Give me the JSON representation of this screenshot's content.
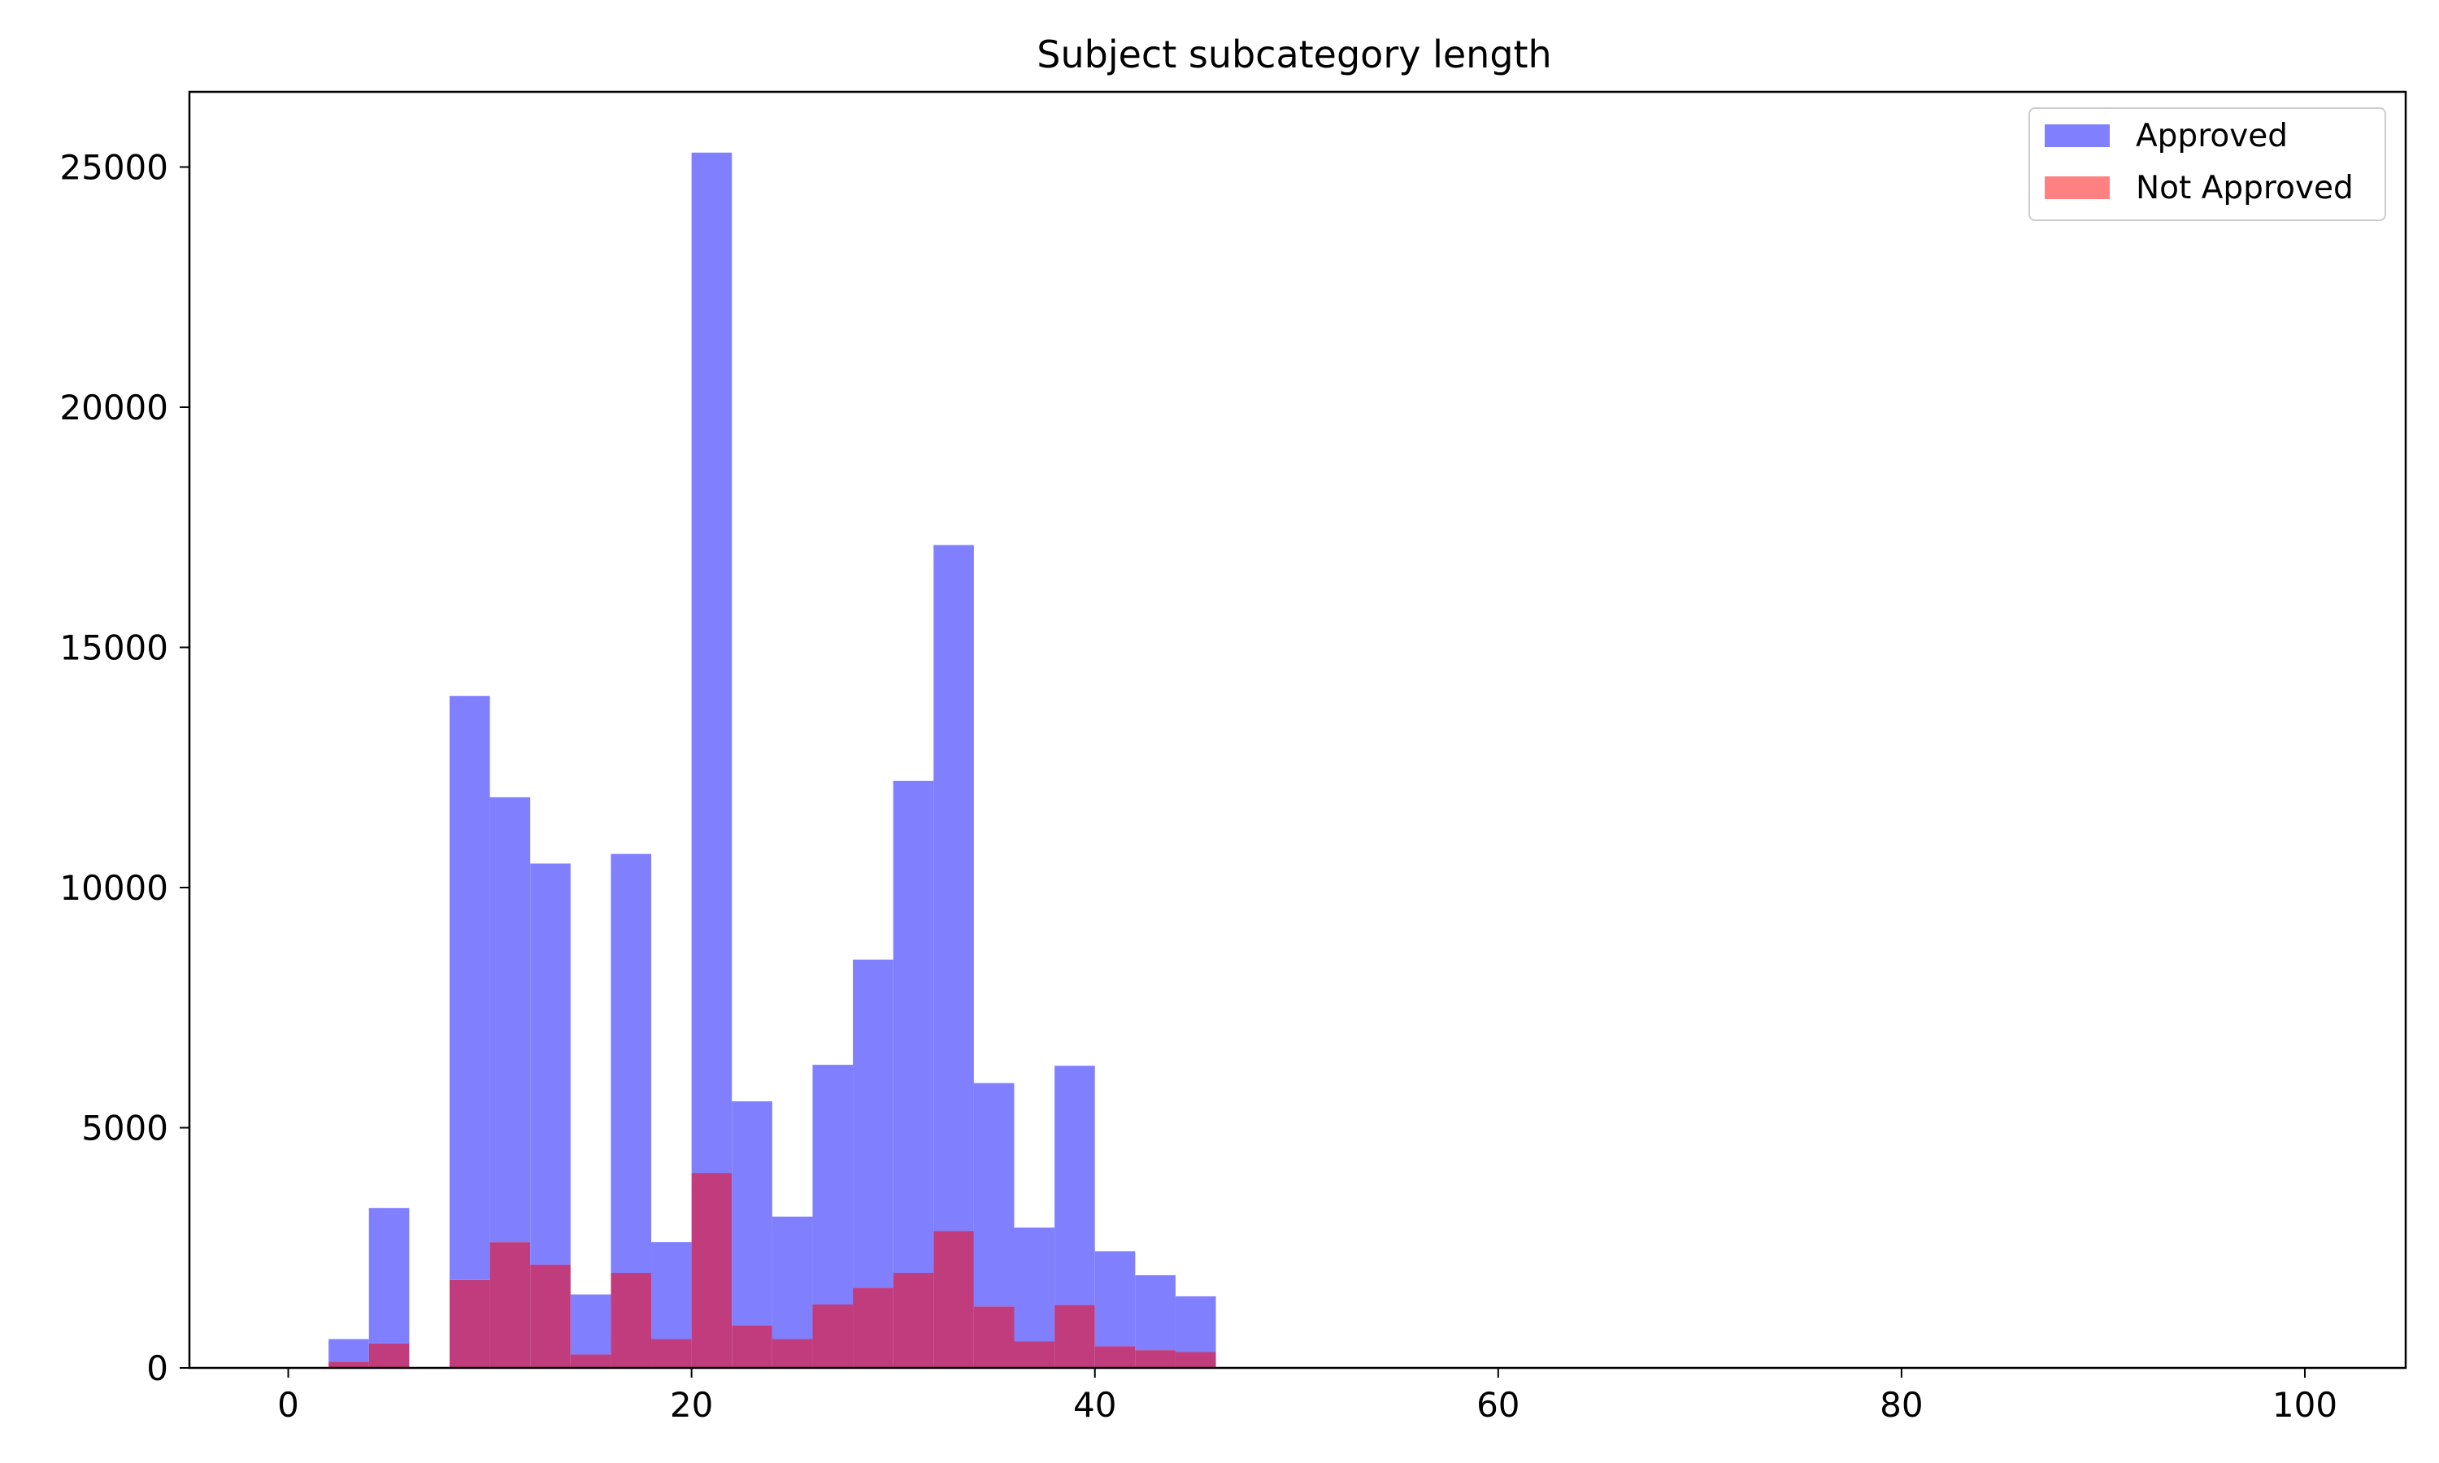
{
  "chart_data": {
    "type": "bar",
    "title": "Subject subcategory length",
    "xlabel": "",
    "ylabel": "",
    "xlim": [
      -4.9,
      105
    ],
    "ylim": [
      0,
      26565
    ],
    "x_ticks": [
      0,
      20,
      40,
      60,
      80,
      100
    ],
    "y_ticks": [
      0,
      5000,
      10000,
      15000,
      20000,
      25000
    ],
    "bin_width": 2,
    "bin_starts": [
      2,
      4,
      6,
      8,
      10,
      12,
      14,
      16,
      18,
      20,
      22,
      24,
      26,
      28,
      30,
      32,
      34,
      36,
      38,
      40,
      42,
      44
    ],
    "grid": false,
    "legend_position": "top-right",
    "series": [
      {
        "name": "Approved",
        "color": "#8080ff",
        "values": [
          600,
          3330,
          0,
          13990,
          11880,
          10500,
          1530,
          10700,
          2620,
          25300,
          5550,
          3150,
          6310,
          8500,
          12220,
          17130,
          5930,
          2920,
          6290,
          2430,
          1930,
          1490
        ]
      },
      {
        "name": "Not Approved",
        "color": "#ff8080",
        "values": [
          130,
          510,
          0,
          1830,
          2620,
          2150,
          280,
          1980,
          600,
          4060,
          880,
          600,
          1320,
          1670,
          1980,
          2850,
          1280,
          550,
          1310,
          450,
          370,
          330
        ]
      }
    ],
    "overlap_color": "#c03c7c"
  }
}
